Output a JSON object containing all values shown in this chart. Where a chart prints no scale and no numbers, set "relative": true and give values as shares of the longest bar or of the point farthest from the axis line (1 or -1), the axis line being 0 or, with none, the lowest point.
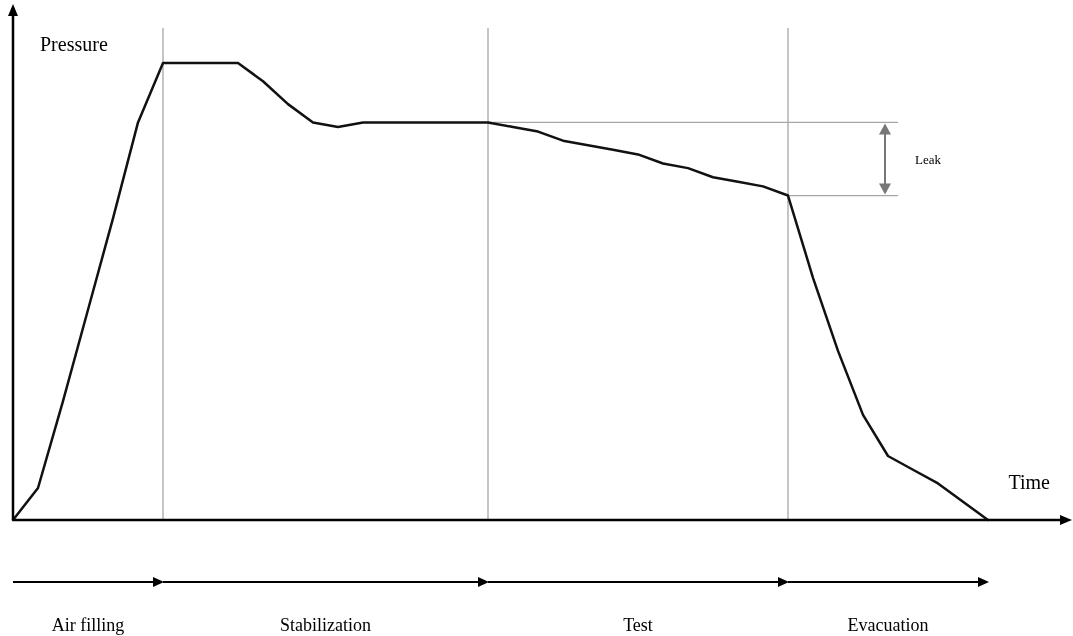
{
  "chart_data": {
    "type": "line",
    "relative": true,
    "xlabel": "Time",
    "ylabel": "Pressure",
    "grid": "x",
    "line_style": "solid",
    "categories": [
      null,
      null,
      null,
      null,
      null,
      null,
      null,
      null,
      null,
      null,
      null,
      null,
      null,
      null,
      null,
      null,
      null,
      null,
      null,
      null,
      null,
      null,
      null,
      null,
      null,
      null,
      null,
      null,
      null,
      null,
      null,
      null,
      null,
      null,
      null,
      null,
      null,
      null,
      null,
      null
    ],
    "series": [
      {
        "color": "#111111",
        "values": [
          0,
          0.07,
          0.26,
          0.46,
          0.66,
          0.87,
          1,
          1,
          1,
          1,
          0.96,
          0.91,
          0.87,
          0.86,
          0.87,
          0.87,
          0.87,
          0.87,
          0.87,
          0.87,
          0.86,
          0.85,
          0.83,
          0.82,
          0.81,
          0.8,
          0.78,
          0.77,
          0.75,
          0.74,
          0.73,
          0.71,
          0.53,
          0.37,
          0.23,
          0.14,
          0.11,
          0.08,
          0.04,
          0
        ]
      }
    ],
    "ref_lines": [
      {
        "axis": "y",
        "value": 0.87,
        "color": "#a6a6a6"
      },
      {
        "axis": "y",
        "value": 0.71,
        "color": "#a6a6a6"
      }
    ],
    "annotations": [
      "Leak",
      "Air filling",
      "Stabilization",
      "Test",
      "Evacuation"
    ]
  }
}
